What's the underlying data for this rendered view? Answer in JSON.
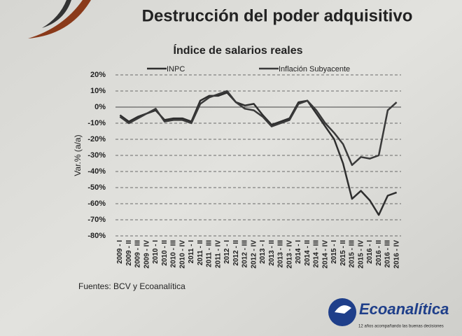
{
  "slide_title": "Destrucción del poder adquisitivo",
  "source": "Fuentes: BCV y Ecoanalítica",
  "brand": "Ecoanalítica",
  "tagline": "12 años acompañando las buenas decisiones",
  "chart_data": {
    "type": "line",
    "title": "Índice de salarios reales",
    "y_label": "Var.% (a/a)",
    "categories": [
      "2009 - I",
      "2009 - II",
      "2009 - III",
      "2009 - IV",
      "2010 - I",
      "2010 - II",
      "2010 - III",
      "2010 - IV",
      "2011 - I",
      "2011 - II",
      "2011 - III",
      "2011 - IV",
      "2012 - I",
      "2012 - II",
      "2012 - III",
      "2012 - IV",
      "2013 - I",
      "2013 - II",
      "2013 - III",
      "2013 - IV",
      "2014 - I",
      "2014 - II",
      "2014 - III",
      "2014 - IV",
      "2015 - I",
      "2015 - II",
      "2015 - III",
      "2015 - IV",
      "2016 - I",
      "2016 - II",
      "2016 - III",
      "2016 - IV"
    ],
    "series": [
      {
        "name": "INPC",
        "color": "#2e2e2e",
        "values": [
          -5,
          -9,
          -6,
          -4,
          -2,
          -8,
          -7,
          -7,
          -9,
          4,
          7,
          7,
          9,
          3,
          1,
          2,
          -5,
          -11,
          -9,
          -7,
          3,
          4,
          -4,
          -12,
          -20,
          -35,
          -57,
          -52,
          -58,
          -67,
          -55,
          -53
        ]
      },
      {
        "name": "Inflación Subyacente",
        "color": "#3a3a3a",
        "values": [
          -6,
          -10,
          -7,
          -4,
          -1,
          -9,
          -8,
          -8,
          -10,
          2,
          6,
          8,
          10,
          3,
          -1,
          -2,
          -6,
          -12,
          -10,
          -8,
          2,
          4,
          -2,
          -10,
          -16,
          -23,
          -36,
          -31,
          -32,
          -30,
          -2,
          3
        ]
      }
    ],
    "ylim": [
      -80,
      20
    ],
    "yticks": [
      {
        "value": -80,
        "label": "-80%"
      },
      {
        "value": -70,
        "label": "-70%"
      },
      {
        "value": -60,
        "label": "-60%"
      },
      {
        "value": -50,
        "label": "-50%"
      },
      {
        "value": -40,
        "label": "-40%"
      },
      {
        "value": -30,
        "label": "-30%"
      },
      {
        "value": -20,
        "label": "-20%"
      },
      {
        "value": -10,
        "label": "-10%"
      },
      {
        "value": 0,
        "label": "0%"
      },
      {
        "value": 10,
        "label": "10%"
      },
      {
        "value": 20,
        "label": "20%"
      }
    ],
    "grid": true
  }
}
